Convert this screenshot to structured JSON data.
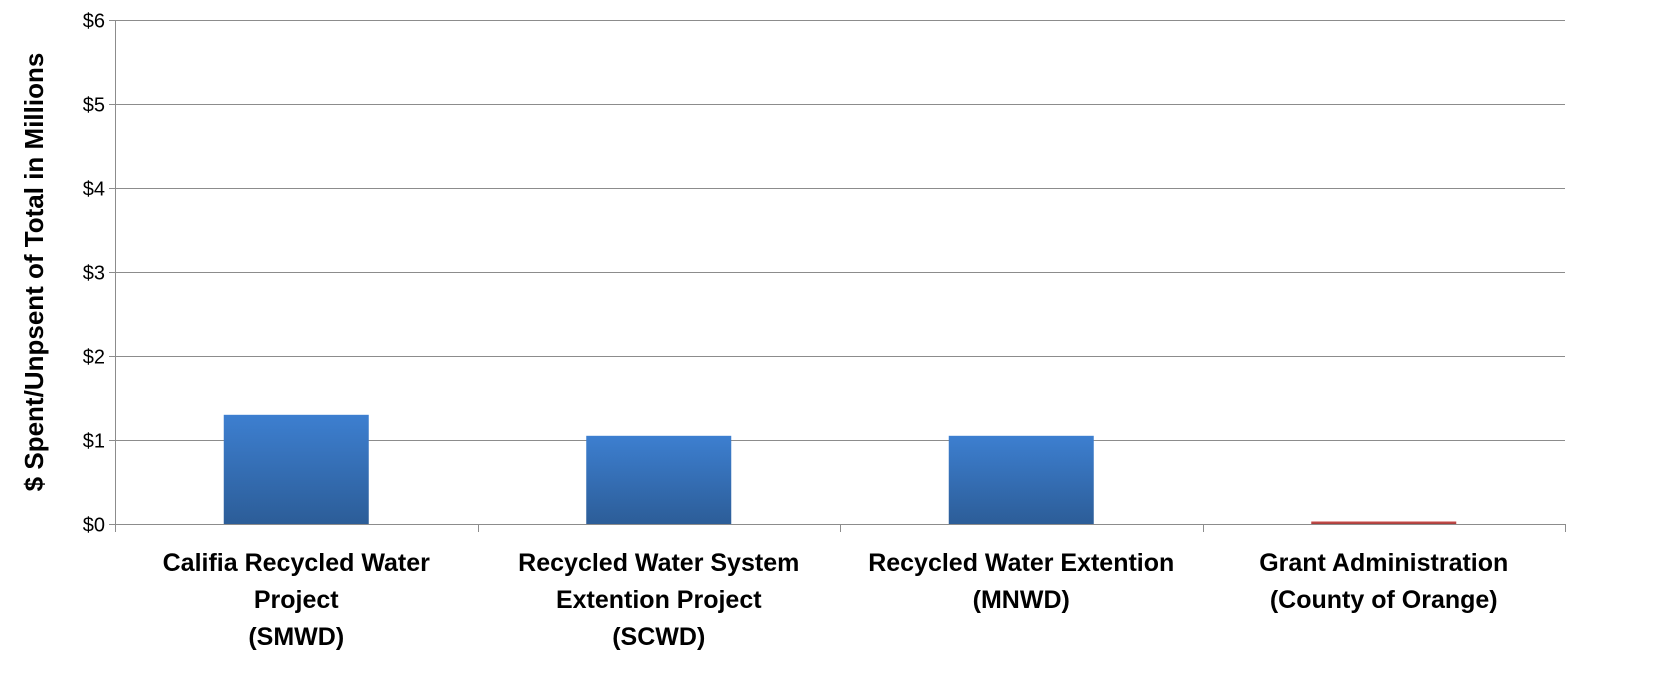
{
  "chart_data": {
    "type": "bar",
    "title": "",
    "xlabel": "",
    "ylabel": "$ Spent/Unpsent of Total in Millions",
    "ylim": [
      0,
      6
    ],
    "yticks": [
      0,
      1,
      2,
      3,
      4,
      5,
      6
    ],
    "ytick_labels": [
      "$0",
      "$1",
      "$2",
      "$3",
      "$4",
      "$5",
      "$6"
    ],
    "grid": true,
    "categories": [
      [
        "Califia Recycled Water",
        "Project",
        "(SMWD)"
      ],
      [
        "Recycled Water System",
        "Extention Project",
        "(SCWD)"
      ],
      [
        "Recycled Water Extention",
        "(MNWD)"
      ],
      [
        "Grant Administration",
        "(County of Orange)"
      ]
    ],
    "values": [
      1.3,
      1.05,
      1.05,
      0.03
    ],
    "colors": [
      "#3a78c4",
      "#3a78c4",
      "#3a78c4",
      "#c0504d"
    ]
  }
}
